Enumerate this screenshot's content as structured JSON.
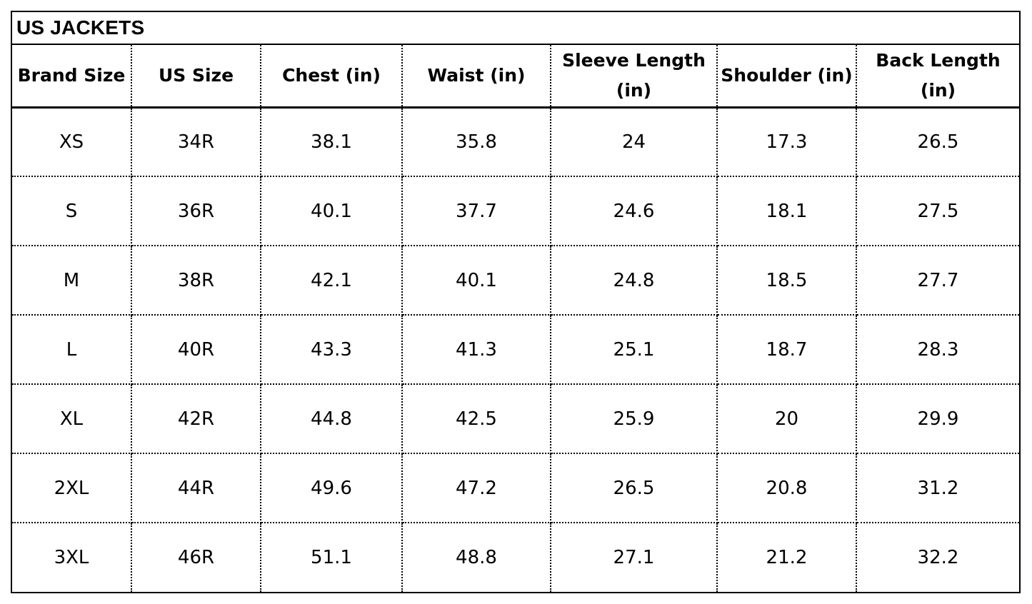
{
  "title": "US JACKETS",
  "columns": [
    "Brand Size",
    "US Size",
    "Chest (in)",
    "Waist (in)",
    "Sleeve Length (in)",
    "Shoulder (in)",
    "Back Length (in)"
  ],
  "rows": [
    [
      "XS",
      "34R",
      "38.1",
      "35.8",
      "24",
      "17.3",
      "26.5"
    ],
    [
      "S",
      "36R",
      "40.1",
      "37.7",
      "24.6",
      "18.1",
      "27.5"
    ],
    [
      "M",
      "38R",
      "42.1",
      "40.1",
      "24.8",
      "18.5",
      "27.7"
    ],
    [
      "L",
      "40R",
      "43.3",
      "41.3",
      "25.1",
      "18.7",
      "28.3"
    ],
    [
      "XL",
      "42R",
      "44.8",
      "42.5",
      "25.9",
      "20",
      "29.9"
    ],
    [
      "2XL",
      "44R",
      "49.6",
      "47.2",
      "26.5",
      "20.8",
      "31.2"
    ],
    [
      "3XL",
      "46R",
      "51.1",
      "48.8",
      "27.1",
      "21.2",
      "32.2"
    ]
  ]
}
